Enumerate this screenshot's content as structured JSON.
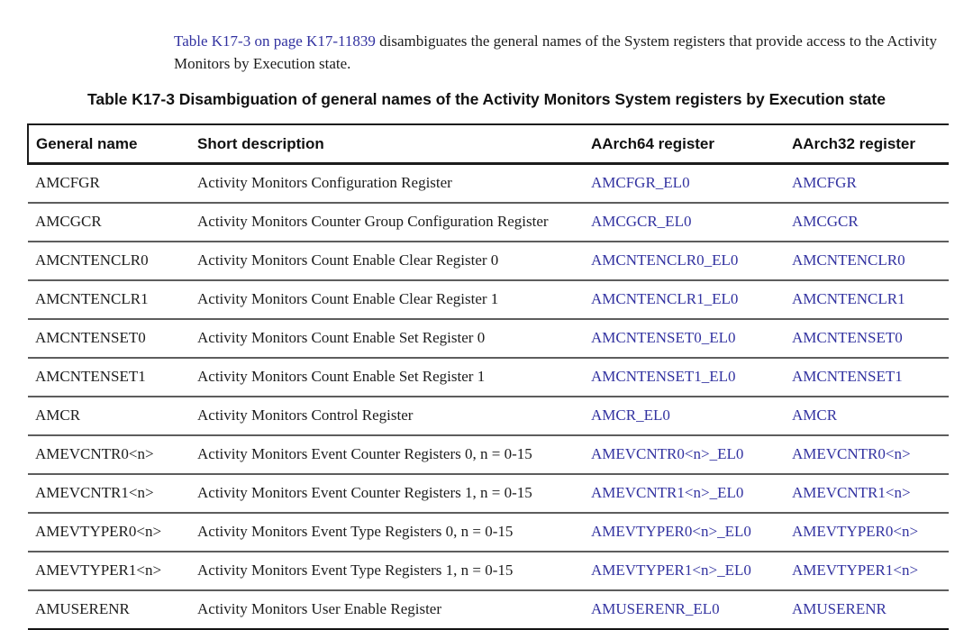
{
  "intro": {
    "link_text": "Table K17-3 on page K17-11839",
    "text": " disambiguates the general names of the System registers that provide access to the Activity Monitors by Execution state."
  },
  "table": {
    "caption": "Table K17-3 Disambiguation of general names of the Activity Monitors System registers by Execution state",
    "columns": [
      "General name",
      "Short description",
      "AArch64 register",
      "AArch32 register"
    ],
    "link_color": "#3232a0",
    "rows": [
      {
        "general": "AMCFGR",
        "description": "Activity Monitors Configuration Register",
        "aarch64": "AMCFGR_EL0",
        "aarch32": "AMCFGR"
      },
      {
        "general": "AMCGCR",
        "description": "Activity Monitors Counter Group Configuration Register",
        "aarch64": "AMCGCR_EL0",
        "aarch32": "AMCGCR"
      },
      {
        "general": "AMCNTENCLR0",
        "description": "Activity Monitors Count Enable Clear Register 0",
        "aarch64": "AMCNTENCLR0_EL0",
        "aarch32": "AMCNTENCLR0"
      },
      {
        "general": "AMCNTENCLR1",
        "description": "Activity Monitors Count Enable Clear Register 1",
        "aarch64": "AMCNTENCLR1_EL0",
        "aarch32": "AMCNTENCLR1"
      },
      {
        "general": "AMCNTENSET0",
        "description": "Activity Monitors Count Enable Set Register 0",
        "aarch64": "AMCNTENSET0_EL0",
        "aarch32": "AMCNTENSET0"
      },
      {
        "general": "AMCNTENSET1",
        "description": "Activity Monitors Count Enable Set Register 1",
        "aarch64": "AMCNTENSET1_EL0",
        "aarch32": "AMCNTENSET1"
      },
      {
        "general": "AMCR",
        "description": "Activity Monitors Control Register",
        "aarch64": "AMCR_EL0",
        "aarch32": "AMCR"
      },
      {
        "general": "AMEVCNTR0<n>",
        "description": "Activity Monitors Event Counter Registers 0, n = 0-15",
        "aarch64": "AMEVCNTR0<n>_EL0",
        "aarch32": "AMEVCNTR0<n>"
      },
      {
        "general": "AMEVCNTR1<n>",
        "description": "Activity Monitors Event Counter Registers 1, n = 0-15",
        "aarch64": "AMEVCNTR1<n>_EL0",
        "aarch32": "AMEVCNTR1<n>"
      },
      {
        "general": "AMEVTYPER0<n>",
        "description": "Activity Monitors Event Type Registers 0, n = 0-15",
        "aarch64": "AMEVTYPER0<n>_EL0",
        "aarch32": "AMEVTYPER0<n>"
      },
      {
        "general": "AMEVTYPER1<n>",
        "description": "Activity Monitors Event Type Registers 1, n = 0-15",
        "aarch64": "AMEVTYPER1<n>_EL0",
        "aarch32": "AMEVTYPER1<n>"
      },
      {
        "general": "AMUSERENR",
        "description": "Activity Monitors User Enable Register",
        "aarch64": "AMUSERENR_EL0",
        "aarch32": "AMUSERENR"
      }
    ]
  }
}
